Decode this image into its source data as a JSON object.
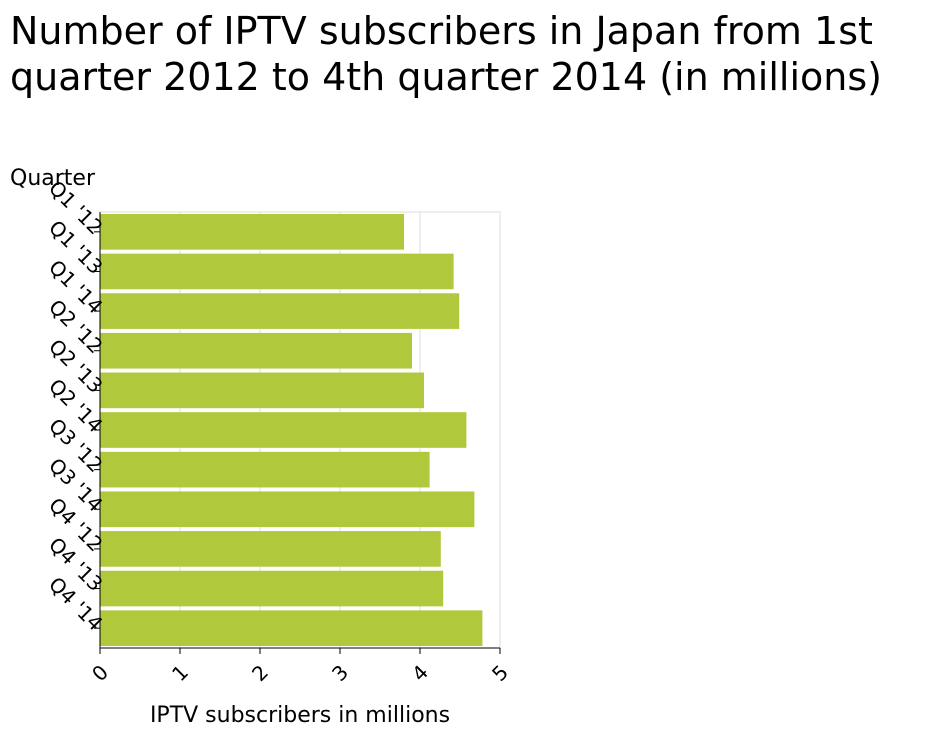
{
  "chart_data": {
    "type": "bar",
    "orientation": "horizontal",
    "title": "Number of IPTV subscribers in Japan from 1st quarter 2012 to 4th quarter 2014 (in millions)",
    "xlabel": "IPTV subscribers in millions",
    "ylabel": "Quarter",
    "categories": [
      "Q1 '12",
      "Q1 '13",
      "Q1 '14",
      "Q2 '12",
      "Q2 '13",
      "Q2 '14",
      "Q3 '12",
      "Q3 '14",
      "Q4 '12",
      "Q4 '13",
      "Q4 '14"
    ],
    "values": [
      3.8,
      4.42,
      4.49,
      3.9,
      4.05,
      4.58,
      4.12,
      4.68,
      4.26,
      4.29,
      4.78
    ],
    "xlim": [
      0,
      5
    ],
    "xticks": [
      "0",
      "1",
      "2",
      "3",
      "4",
      "5"
    ],
    "grid": true,
    "legend": "none",
    "bar_color": "#b0c83c"
  }
}
